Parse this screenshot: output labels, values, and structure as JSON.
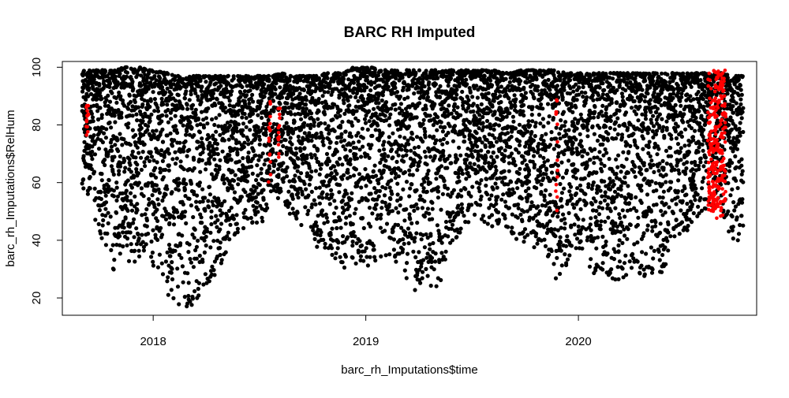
{
  "chart_data": {
    "type": "scatter",
    "title": "BARC RH Imputed",
    "xlabel": "barc_rh_Imputations$time",
    "ylabel": "barc_rh_Imputations$RelHum",
    "x_range": [
      "2017-07-29",
      "2020-11-02"
    ],
    "ylim": [
      14,
      102
    ],
    "x_ticks": [
      {
        "date": "2018-01-01",
        "label": "2018"
      },
      {
        "date": "2019-01-01",
        "label": "2019"
      },
      {
        "date": "2020-01-01",
        "label": "2020"
      }
    ],
    "y_ticks": [
      20,
      40,
      60,
      80,
      100
    ],
    "grid": false,
    "legend": "none",
    "series": [
      {
        "color": "#000000",
        "trace": [
          [
            "2017-09-01",
            56,
            99
          ],
          [
            "2017-09-20",
            48,
            99
          ],
          [
            "2017-10-10",
            38,
            99
          ],
          [
            "2017-10-25",
            28,
            99
          ],
          [
            "2017-11-10",
            38,
            100
          ],
          [
            "2017-11-25",
            30,
            100
          ],
          [
            "2017-12-10",
            34,
            100
          ],
          [
            "2017-12-25",
            36,
            99
          ],
          [
            "2018-01-10",
            26,
            99
          ],
          [
            "2018-01-25",
            18,
            98
          ],
          [
            "2018-02-10",
            17,
            97
          ],
          [
            "2018-02-25",
            16,
            97
          ],
          [
            "2018-03-10",
            17,
            97
          ],
          [
            "2018-03-25",
            22,
            97
          ],
          [
            "2018-04-10",
            24,
            97
          ],
          [
            "2018-04-25",
            30,
            97
          ],
          [
            "2018-05-10",
            38,
            97
          ],
          [
            "2018-05-25",
            42,
            97
          ],
          [
            "2018-06-10",
            45,
            97
          ],
          [
            "2018-06-25",
            46,
            97
          ],
          [
            "2018-07-10",
            46,
            97
          ],
          [
            "2018-07-25",
            58,
            97
          ],
          [
            "2018-08-10",
            52,
            98
          ],
          [
            "2018-08-25",
            48,
            97
          ],
          [
            "2018-09-10",
            45,
            97
          ],
          [
            "2018-09-25",
            42,
            97
          ],
          [
            "2018-10-10",
            37,
            97
          ],
          [
            "2018-10-25",
            36,
            98
          ],
          [
            "2018-11-10",
            33,
            98
          ],
          [
            "2018-11-25",
            30,
            98
          ],
          [
            "2018-12-10",
            30,
            100
          ],
          [
            "2018-12-25",
            33,
            100
          ],
          [
            "2019-01-10",
            30,
            100
          ],
          [
            "2019-01-25",
            34,
            99
          ],
          [
            "2019-02-10",
            34,
            99
          ],
          [
            "2019-02-25",
            31,
            99
          ],
          [
            "2019-03-10",
            27,
            99
          ],
          [
            "2019-03-25",
            20,
            99
          ],
          [
            "2019-04-10",
            26,
            99
          ],
          [
            "2019-04-25",
            22,
            99
          ],
          [
            "2019-05-10",
            26,
            99
          ],
          [
            "2019-05-25",
            38,
            99
          ],
          [
            "2019-06-10",
            42,
            99
          ],
          [
            "2019-06-25",
            46,
            99
          ],
          [
            "2019-07-10",
            48,
            99
          ],
          [
            "2019-07-25",
            46,
            99
          ],
          [
            "2019-08-10",
            44,
            99
          ],
          [
            "2019-08-25",
            46,
            98
          ],
          [
            "2019-09-10",
            40,
            98
          ],
          [
            "2019-09-25",
            40,
            99
          ],
          [
            "2019-10-10",
            38,
            99
          ],
          [
            "2019-10-25",
            36,
            99
          ],
          [
            "2019-11-10",
            34,
            99
          ],
          [
            "2019-11-25",
            23,
            99
          ],
          [
            "2019-12-10",
            30,
            98
          ],
          [
            "2019-12-25",
            38,
            98
          ],
          [
            "2020-01-10",
            32,
            98
          ],
          [
            "2020-01-25",
            28,
            98
          ],
          [
            "2020-02-10",
            30,
            98
          ],
          [
            "2020-02-25",
            27,
            98
          ],
          [
            "2020-03-10",
            24,
            98
          ],
          [
            "2020-03-25",
            28,
            98
          ],
          [
            "2020-04-10",
            30,
            98
          ],
          [
            "2020-04-25",
            26,
            98
          ],
          [
            "2020-05-10",
            28,
            98
          ],
          [
            "2020-05-25",
            28,
            98
          ],
          [
            "2020-06-10",
            40,
            98
          ],
          [
            "2020-06-25",
            42,
            98
          ],
          [
            "2020-07-10",
            44,
            98
          ],
          [
            "2020-07-25",
            48,
            98
          ],
          [
            "2020-08-10",
            50,
            98
          ],
          [
            "2020-08-25",
            52,
            98
          ],
          [
            "2020-09-10",
            44,
            98
          ],
          [
            "2020-09-25",
            40,
            97
          ]
        ]
      },
      {
        "color": "#ff0000",
        "trace": [
          [
            "2017-09-10",
            75,
            90
          ],
          [
            "2018-07-20",
            60,
            90
          ],
          [
            "2018-08-05",
            68,
            86
          ],
          [
            "2019-11-25",
            50,
            90
          ],
          [
            "2020-08-15",
            50,
            98
          ],
          [
            "2020-08-25",
            47,
            99
          ],
          [
            "2020-09-05",
            48,
            99
          ]
        ]
      }
    ]
  }
}
